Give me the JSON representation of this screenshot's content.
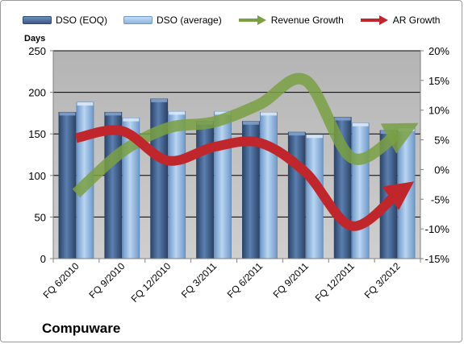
{
  "caption": "Compuware",
  "colors": {
    "dso_eoq": "#4f6f9c",
    "dso_average": "#9fc3e9",
    "revenue_growth": "#7aa043",
    "ar_growth": "#c0272d",
    "plot_background": "#c0c0c0",
    "gridline": "#000000"
  },
  "legend": [
    {
      "key": "dso_eoq",
      "label": "DSO (EOQ)",
      "icon": "bar-swatch"
    },
    {
      "key": "dso_average",
      "label": "DSO (average)",
      "icon": "bar-swatch"
    },
    {
      "key": "revenue_growth",
      "label": "Revenue Growth",
      "icon": "arrow-swatch"
    },
    {
      "key": "ar_growth",
      "label": "AR Growth",
      "icon": "arrow-swatch"
    }
  ],
  "chart_data": {
    "type": "bar",
    "title": "Compuware",
    "categories": [
      "FQ 6/2010",
      "FQ 9/2010",
      "FQ 12/2010",
      "FQ 3/2011",
      "FQ 6/2011",
      "FQ 9/2011",
      "FQ 12/2011",
      "FQ 3/2012"
    ],
    "ylabel": "Days",
    "ylim": [
      0,
      250
    ],
    "yticks": [
      0,
      50,
      100,
      150,
      200,
      250
    ],
    "y2lim": [
      -15,
      20
    ],
    "y2ticks": [
      "-15%",
      "-10%",
      "-5%",
      "0%",
      "5%",
      "10%",
      "15%",
      "20%"
    ],
    "y2tick_values": [
      -15,
      -10,
      -5,
      0,
      5,
      10,
      15,
      20
    ],
    "grid": true,
    "legend_position": "top",
    "series": [
      {
        "name": "DSO (EOQ)",
        "type": "bar",
        "axis": "left",
        "values": [
          176,
          176,
          192,
          165,
          165,
          152,
          170,
          154
        ]
      },
      {
        "name": "DSO (average)",
        "type": "bar",
        "axis": "left",
        "values": [
          188,
          169,
          177,
          177,
          176,
          149,
          163,
          157
        ]
      },
      {
        "name": "Revenue Growth",
        "type": "line",
        "axis": "right",
        "unit": "%",
        "values": [
          -4,
          3,
          7,
          8,
          11,
          15,
          2,
          6
        ]
      },
      {
        "name": "AR Growth",
        "type": "line",
        "axis": "right",
        "unit": "%",
        "values": [
          5.3,
          6.5,
          1.5,
          3.8,
          4.5,
          -0.5,
          -9.5,
          -4
        ]
      }
    ]
  }
}
